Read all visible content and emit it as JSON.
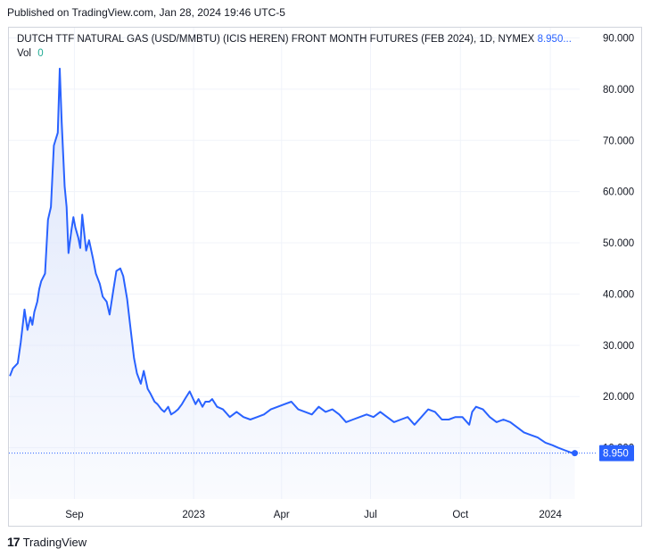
{
  "published": "Published on TradingView.com, Jan 28, 2024 19:46 UTC-5",
  "legend": {
    "symbol": "DUTCH TTF NATURAL GAS (USD/MMBTU) (ICIS HEREN) FRONT MONTH FUTURES (FEB 2024), 1D, NYMEX",
    "last": "8.950...",
    "vol_label": "Vol",
    "vol_value": "0"
  },
  "footer": {
    "logo_glyph": "17",
    "brand": "TradingView"
  },
  "colors": {
    "line": "#2962ff",
    "fill": "#dbe4fb",
    "grid": "#f0f3fa",
    "axis_text": "#131722",
    "badge": "#2962ff"
  },
  "chart_data": {
    "type": "area",
    "title": "",
    "y_axis": {
      "min": 0,
      "max": 92,
      "ticks": [
        90,
        80,
        70,
        60,
        50,
        40,
        30,
        20,
        10
      ],
      "tick_labels": [
        "90.000",
        "80.000",
        "70.000",
        "60.000",
        "50.000",
        "40.000",
        "30.000",
        "20.000",
        "10.000"
      ]
    },
    "x_axis": {
      "tick_labels": [
        "Sep",
        "2023",
        "Apr",
        "Jul",
        "Oct",
        "2024"
      ],
      "tick_dates": [
        "2022-09-01",
        "2023-01-01",
        "2023-04-01",
        "2023-07-01",
        "2023-10-01",
        "2024-01-01"
      ],
      "range": [
        "2022-06-26",
        "2024-01-31"
      ]
    },
    "grid": true,
    "last_price": 8.95,
    "last_price_label": "8.950",
    "series": [
      {
        "x": [
          "2022-06-27",
          "2022-06-30",
          "2022-07-05",
          "2022-07-08",
          "2022-07-12",
          "2022-07-15",
          "2022-07-18",
          "2022-07-20",
          "2022-07-22",
          "2022-07-25",
          "2022-07-27",
          "2022-07-29",
          "2022-08-02",
          "2022-08-05",
          "2022-08-08",
          "2022-08-11",
          "2022-08-15",
          "2022-08-17",
          "2022-08-19",
          "2022-08-22",
          "2022-08-24",
          "2022-08-26",
          "2022-08-29",
          "2022-08-31",
          "2022-09-02",
          "2022-09-05",
          "2022-09-07",
          "2022-09-09",
          "2022-09-13",
          "2022-09-16",
          "2022-09-20",
          "2022-09-23",
          "2022-09-27",
          "2022-09-30",
          "2022-10-04",
          "2022-10-07",
          "2022-10-11",
          "2022-10-14",
          "2022-10-18",
          "2022-10-21",
          "2022-10-25",
          "2022-10-28",
          "2022-11-01",
          "2022-11-04",
          "2022-11-08",
          "2022-11-11",
          "2022-11-15",
          "2022-11-18",
          "2022-11-22",
          "2022-11-25",
          "2022-11-29",
          "2022-12-02",
          "2022-12-06",
          "2022-12-09",
          "2022-12-13",
          "2022-12-16",
          "2022-12-20",
          "2022-12-23",
          "2022-12-28",
          "2023-01-03",
          "2023-01-06",
          "2023-01-10",
          "2023-01-13",
          "2023-01-17",
          "2023-01-20",
          "2023-01-25",
          "2023-01-31",
          "2023-02-07",
          "2023-02-14",
          "2023-02-21",
          "2023-02-28",
          "2023-03-07",
          "2023-03-14",
          "2023-03-21",
          "2023-03-28",
          "2023-04-04",
          "2023-04-11",
          "2023-04-18",
          "2023-04-25",
          "2023-05-02",
          "2023-05-09",
          "2023-05-16",
          "2023-05-23",
          "2023-05-30",
          "2023-06-06",
          "2023-06-13",
          "2023-06-20",
          "2023-06-27",
          "2023-07-04",
          "2023-07-11",
          "2023-07-18",
          "2023-07-25",
          "2023-08-01",
          "2023-08-08",
          "2023-08-15",
          "2023-08-22",
          "2023-08-29",
          "2023-09-05",
          "2023-09-12",
          "2023-09-19",
          "2023-09-26",
          "2023-10-03",
          "2023-10-10",
          "2023-10-13",
          "2023-10-17",
          "2023-10-24",
          "2023-10-31",
          "2023-11-07",
          "2023-11-14",
          "2023-11-21",
          "2023-11-28",
          "2023-12-05",
          "2023-12-12",
          "2023-12-19",
          "2023-12-27",
          "2024-01-03",
          "2024-01-09",
          "2024-01-16",
          "2024-01-23",
          "2024-01-26"
        ],
        "values": [
          24.0,
          25.5,
          26.5,
          30.5,
          37.0,
          33.0,
          35.5,
          34.0,
          36.5,
          38.5,
          41.0,
          42.5,
          44.0,
          54.5,
          57.0,
          69.0,
          71.5,
          84.0,
          73.5,
          61.0,
          57.0,
          48.0,
          52.5,
          55.0,
          53.0,
          51.0,
          49.0,
          55.5,
          48.5,
          50.5,
          47.0,
          44.0,
          42.0,
          39.5,
          38.5,
          36.0,
          41.0,
          44.5,
          45.0,
          43.5,
          39.0,
          34.0,
          27.5,
          24.5,
          22.5,
          25.0,
          21.5,
          20.5,
          19.0,
          18.5,
          17.5,
          17.0,
          18.0,
          16.5,
          17.0,
          17.5,
          18.5,
          19.5,
          21.0,
          18.5,
          19.5,
          18.0,
          19.0,
          19.0,
          19.5,
          18.0,
          17.5,
          16.0,
          17.0,
          16.0,
          15.5,
          16.0,
          16.5,
          17.5,
          18.0,
          18.5,
          19.0,
          17.5,
          17.0,
          16.5,
          18.0,
          17.0,
          17.5,
          16.5,
          15.0,
          15.5,
          16.0,
          16.5,
          16.0,
          17.0,
          16.0,
          15.0,
          15.5,
          16.0,
          14.5,
          16.0,
          17.5,
          17.0,
          15.5,
          15.5,
          16.0,
          16.0,
          14.5,
          17.0,
          18.0,
          17.5,
          16.0,
          15.0,
          15.5,
          15.0,
          14.0,
          13.0,
          12.5,
          12.0,
          11.0,
          10.5,
          10.0,
          9.5,
          9.0,
          8.95
        ]
      }
    ]
  }
}
